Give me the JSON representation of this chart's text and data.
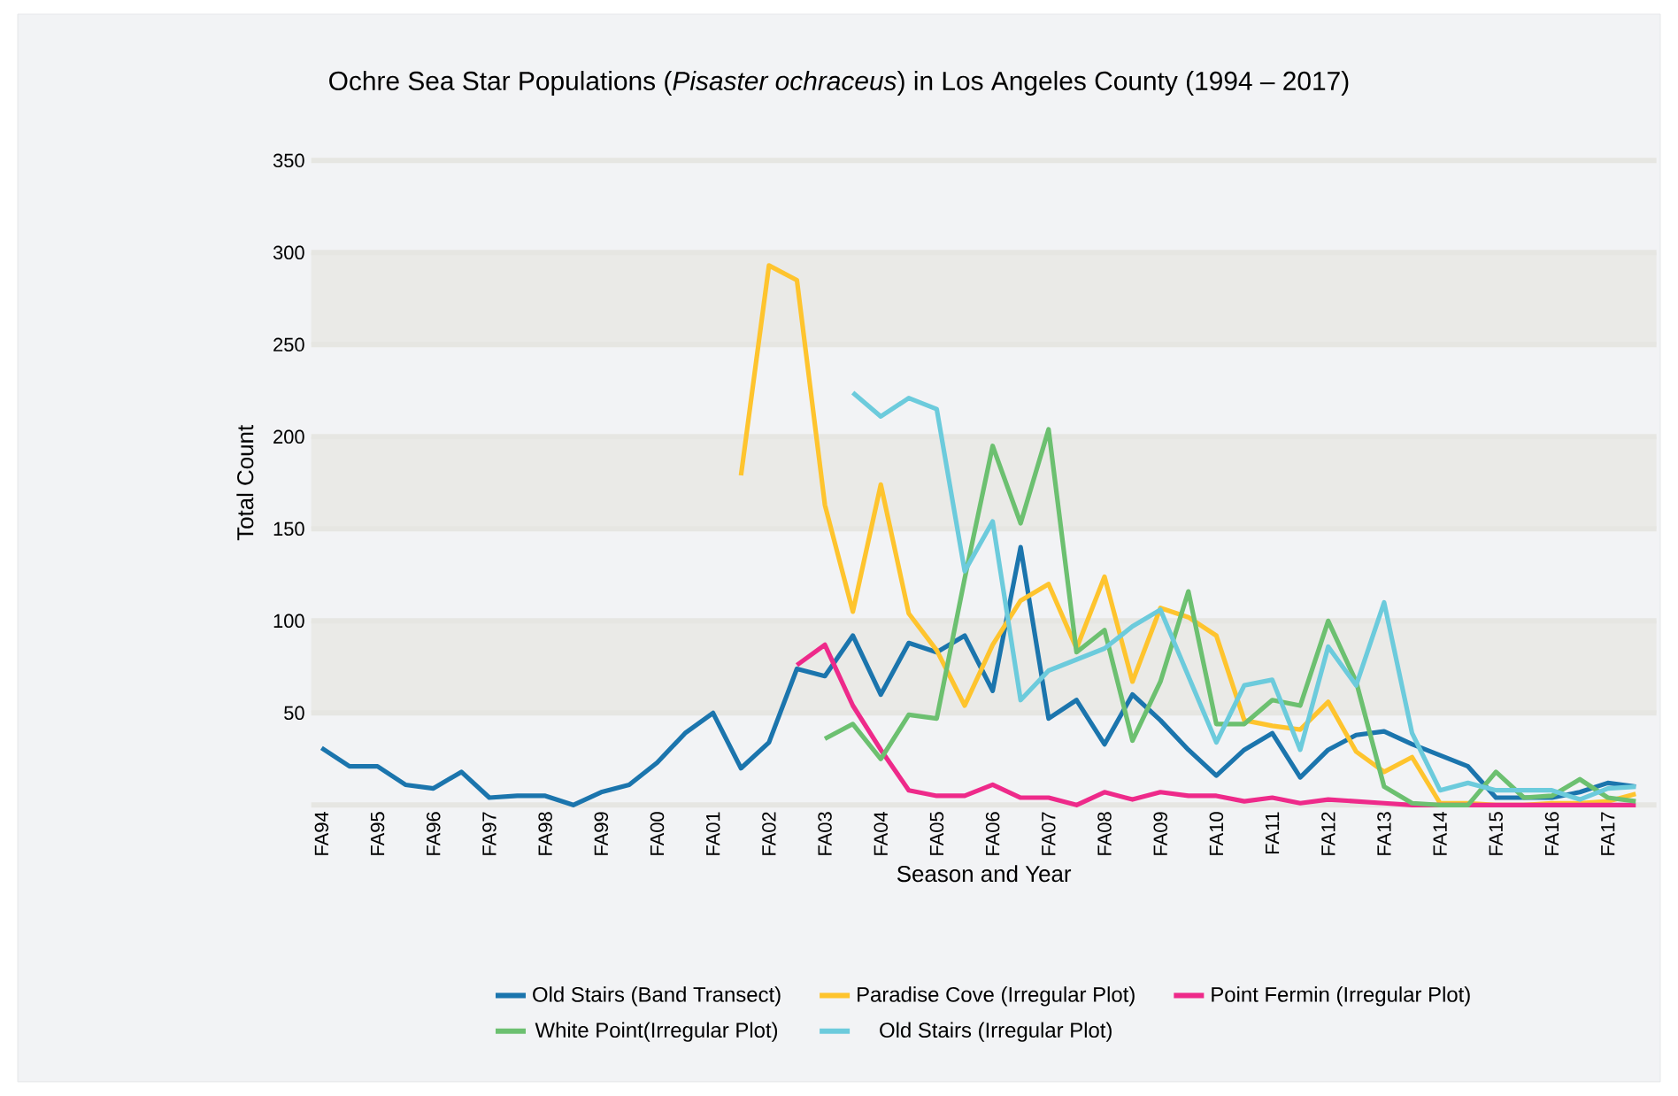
{
  "chart_data": {
    "type": "line",
    "title": "Ochre Sea Star Populations (*Pisaster ochraceus*) in Los Angeles County (1994 – 2017)",
    "xlabel": "Season and Year",
    "ylabel": "Total Count",
    "categories": [
      "FA94",
      null,
      "FA95",
      null,
      "FA96",
      null,
      "FA97",
      null,
      "FA98",
      null,
      "FA99",
      null,
      "FA00",
      null,
      "FA01",
      null,
      "FA02",
      null,
      "FA03",
      null,
      "FA04",
      null,
      "FA05",
      null,
      "FA06",
      null,
      "FA07",
      null,
      "FA08",
      null,
      "FA09",
      null,
      "FA10",
      null,
      "FA11",
      null,
      "FA12",
      null,
      "FA13",
      null,
      "FA14",
      null,
      "FA15",
      null,
      "FA16",
      null,
      "FA17",
      null
    ],
    "series": [
      {
        "name": "Old Stairs (Band Transect)",
        "color": "#1b75ad",
        "values": [
          31,
          21,
          21,
          11,
          9,
          18,
          4,
          5,
          5,
          0,
          7,
          11,
          23,
          39,
          50,
          20,
          34,
          74,
          70,
          92,
          60,
          88,
          83,
          92,
          62,
          140,
          47,
          57,
          33,
          60,
          46,
          30,
          16,
          30,
          39,
          15,
          30,
          38,
          40,
          33,
          27,
          21,
          4,
          4,
          4,
          7,
          12,
          10
        ]
      },
      {
        "name": "Paradise Cove (Irregular Plot)",
        "color": "#fec42e",
        "values": [
          null,
          null,
          null,
          null,
          null,
          null,
          null,
          null,
          null,
          null,
          null,
          null,
          null,
          null,
          null,
          179,
          293,
          285,
          163,
          105,
          174,
          104,
          84,
          54,
          87,
          111,
          120,
          85,
          124,
          67,
          107,
          102,
          92,
          46,
          43,
          41,
          56,
          29,
          18,
          26,
          1,
          1,
          0,
          0,
          1,
          1,
          2,
          6
        ]
      },
      {
        "name": "Point Fermin (Irregular Plot)",
        "color": "#ee2a8a",
        "values": [
          null,
          null,
          null,
          null,
          null,
          null,
          null,
          null,
          null,
          null,
          null,
          null,
          null,
          null,
          null,
          null,
          null,
          76,
          87,
          54,
          30,
          8,
          5,
          5,
          11,
          4,
          4,
          0,
          7,
          3,
          7,
          5,
          5,
          2,
          4,
          1,
          3,
          2,
          1,
          0,
          0,
          0,
          0,
          0,
          0,
          0,
          0,
          0
        ]
      },
      {
        "name": "White Point(Irregular Plot)",
        "color": "#6cc070",
        "values": [
          null,
          null,
          null,
          null,
          null,
          null,
          null,
          null,
          null,
          null,
          null,
          null,
          null,
          null,
          null,
          null,
          null,
          null,
          36,
          44,
          25,
          49,
          47,
          123,
          195,
          153,
          204,
          83,
          95,
          35,
          67,
          116,
          44,
          44,
          57,
          54,
          100,
          67,
          10,
          1,
          0,
          0,
          18,
          4,
          5,
          14,
          4,
          2
        ]
      },
      {
        "name": "Old Stairs (Irregular Plot)",
        "color": "#6ccbdc",
        "values": [
          null,
          null,
          null,
          null,
          null,
          null,
          null,
          null,
          null,
          null,
          null,
          null,
          null,
          null,
          null,
          null,
          null,
          null,
          null,
          224,
          211,
          221,
          215,
          127,
          154,
          57,
          73,
          79,
          85,
          97,
          106,
          70,
          34,
          65,
          68,
          30,
          86,
          65,
          110,
          39,
          8,
          12,
          8,
          8,
          8,
          3,
          9,
          10
        ]
      }
    ],
    "ylim": [
      0,
      350
    ],
    "yticks": [
      {
        "value": 0,
        "label": null
      },
      50,
      100,
      150,
      200,
      250,
      300,
      350
    ],
    "grid": "y",
    "legend": "bottom",
    "line_style": "solid",
    "marker": "none"
  }
}
